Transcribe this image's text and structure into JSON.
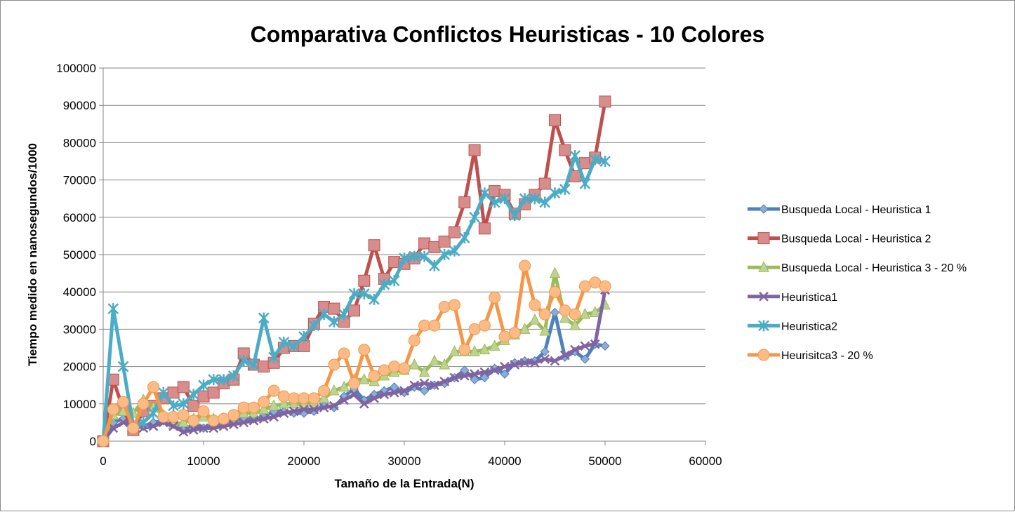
{
  "chart_data": {
    "type": "line",
    "title": "Comparativa Conflictos Heuristicas - 10 Colores",
    "xlabel": "Tamaño de la Entrada(N)",
    "ylabel": "Tiempo medido en nanosegundos/1000",
    "xlim": [
      0,
      60000
    ],
    "ylim": [
      0,
      100000
    ],
    "x_ticks": [
      "0",
      "10000",
      "20000",
      "30000",
      "40000",
      "50000",
      "60000"
    ],
    "y_ticks": [
      "0",
      "10000",
      "20000",
      "30000",
      "40000",
      "50000",
      "60000",
      "70000",
      "80000",
      "90000",
      "100000"
    ],
    "grid": "horizontal",
    "legend_position": "right",
    "x": [
      0,
      1000,
      2000,
      3000,
      4000,
      5000,
      6000,
      7000,
      8000,
      9000,
      10000,
      11000,
      12000,
      13000,
      14000,
      15000,
      16000,
      17000,
      18000,
      19000,
      20000,
      21000,
      22000,
      23000,
      24000,
      25000,
      26000,
      27000,
      28000,
      29000,
      30000,
      31000,
      32000,
      33000,
      34000,
      35000,
      36000,
      37000,
      38000,
      39000,
      40000,
      41000,
      42000,
      43000,
      44000,
      45000,
      46000,
      47000,
      48000,
      49000,
      50000
    ],
    "series": [
      {
        "name": "Busqueda Local - Heuristica 1",
        "color": "#4f81bd",
        "marker": "diamond",
        "values": [
          0,
          5000,
          6000,
          3500,
          4000,
          5000,
          5500,
          6000,
          3000,
          4500,
          3500,
          4500,
          4500,
          5500,
          6000,
          6000,
          6500,
          8000,
          8000,
          7500,
          7500,
          8000,
          9500,
          9000,
          12000,
          14000,
          11000,
          12500,
          13500,
          14500,
          13000,
          14500,
          13500,
          15000,
          15500,
          17000,
          19000,
          16500,
          17000,
          19500,
          18000,
          21000,
          21500,
          21500,
          24000,
          34500,
          22500,
          24000,
          22000,
          26000,
          25500
        ]
      },
      {
        "name": "Busqueda Local - Heuristica 2",
        "color": "#c0504d",
        "marker": "square",
        "values": [
          0,
          16500,
          8500,
          3000,
          8000,
          9500,
          11500,
          13000,
          14500,
          9500,
          12000,
          13000,
          15500,
          16500,
          23500,
          20500,
          20000,
          21000,
          25000,
          25500,
          25500,
          31500,
          36000,
          35500,
          32000,
          35000,
          43000,
          52500,
          43500,
          48000,
          47500,
          49000,
          53000,
          52000,
          53500,
          56000,
          64000,
          78000,
          57000,
          67000,
          66000,
          61000,
          63500,
          66000,
          69000,
          86000,
          78000,
          71000,
          74500,
          76000,
          91000
        ]
      },
      {
        "name": "Busqueda Local - Heuristica 3 - 20 %",
        "color": "#9bbb59",
        "marker": "triangle",
        "values": [
          0,
          7000,
          8000,
          7500,
          11000,
          9000,
          7000,
          4500,
          5000,
          6000,
          6500,
          6000,
          6000,
          6500,
          7500,
          7500,
          8500,
          9500,
          10000,
          10000,
          10000,
          10500,
          11500,
          13500,
          14500,
          16500,
          16500,
          16000,
          17500,
          18500,
          19000,
          20500,
          18500,
          21500,
          20500,
          24000,
          24000,
          24000,
          24500,
          25500,
          27000,
          28500,
          30000,
          32500,
          29500,
          45000,
          33000,
          31000,
          34000,
          34500,
          36500
        ]
      },
      {
        "name": "Heuristica1",
        "color": "#8064a2",
        "marker": "x",
        "values": [
          0,
          3500,
          5000,
          4500,
          3500,
          4000,
          5000,
          4000,
          2500,
          3000,
          3500,
          3500,
          4000,
          4500,
          5000,
          5500,
          6000,
          6500,
          7500,
          8000,
          8500,
          8500,
          9000,
          9500,
          11000,
          12500,
          10000,
          11500,
          12500,
          13000,
          13500,
          15000,
          15500,
          15000,
          16000,
          17000,
          17500,
          18000,
          18500,
          19000,
          20000,
          20500,
          21000,
          21000,
          22000,
          21500,
          23000,
          24500,
          25500,
          26000,
          40500
        ]
      },
      {
        "name": "Heuristica2",
        "color": "#4bacc6",
        "marker": "asterisk",
        "values": [
          0,
          35500,
          20000,
          4000,
          5000,
          7500,
          13000,
          9500,
          10000,
          12500,
          15000,
          16500,
          16500,
          17500,
          21500,
          20500,
          33000,
          22500,
          26500,
          25500,
          28000,
          31000,
          34000,
          32000,
          34000,
          39500,
          39500,
          38000,
          42000,
          43000,
          49000,
          49500,
          49500,
          47000,
          50000,
          51000,
          54500,
          60000,
          66500,
          64000,
          65000,
          60500,
          65000,
          65000,
          64000,
          66500,
          67500,
          76500,
          69000,
          75500,
          75000
        ]
      },
      {
        "name": "Heurisitca3 - 20 %",
        "color": "#f79646",
        "marker": "circle",
        "values": [
          0,
          8500,
          10500,
          3500,
          10000,
          14500,
          6500,
          6500,
          7000,
          5500,
          8000,
          5500,
          6000,
          7000,
          9000,
          9000,
          10500,
          13500,
          12000,
          11500,
          11500,
          11500,
          13500,
          20500,
          23500,
          15500,
          24500,
          17500,
          19000,
          20000,
          19500,
          27000,
          31000,
          31000,
          36000,
          36500,
          24500,
          30000,
          31000,
          38500,
          28000,
          29000,
          47000,
          36500,
          34000,
          40000,
          35000,
          34000,
          41500,
          42500,
          41500
        ]
      }
    ]
  }
}
